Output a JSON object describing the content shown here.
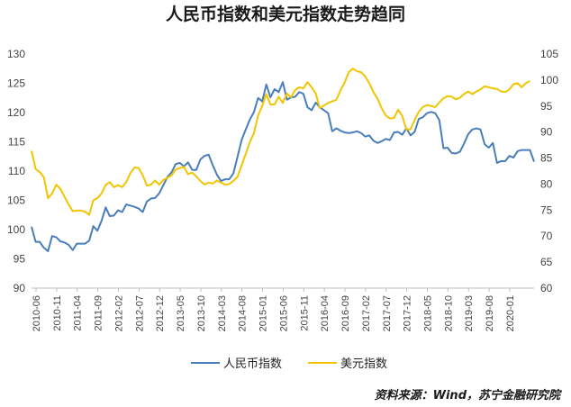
{
  "chart_data": {
    "type": "line",
    "title": "人民币指数和美元指数走势趋同",
    "source": "资料来源：Wind，苏宁金融研究院",
    "y_left": {
      "min": 90,
      "max": 130,
      "ticks": [
        90,
        95,
        100,
        105,
        110,
        115,
        120,
        125,
        130
      ]
    },
    "y_right": {
      "min": 60,
      "max": 105,
      "ticks": [
        60,
        65,
        70,
        75,
        80,
        85,
        90,
        95,
        100,
        105
      ]
    },
    "x_ticks": [
      "2010-06",
      "2010-11",
      "2011-04",
      "2011-09",
      "2012-02",
      "2012-07",
      "2012-12",
      "2013-05",
      "2013-10",
      "2014-03",
      "2014-08",
      "2015-01",
      "2015-06",
      "2015-11",
      "2016-04",
      "2016-09",
      "2017-02",
      "2017-07",
      "2017-12",
      "2018-05",
      "2018-10",
      "2019-03",
      "2019-08",
      "2020-01"
    ],
    "series": [
      {
        "name": "人民币指数",
        "axis": "left",
        "color": "#4a7ebb",
        "values": [
          100.5,
          97.9,
          97.9,
          96.9,
          96.3,
          98.9,
          98.7,
          98,
          97.8,
          97.4,
          96.5,
          97.6,
          97.6,
          97.6,
          98.1,
          100.6,
          99.8,
          101.5,
          103.8,
          102.3,
          102.4,
          103.3,
          103,
          104.3,
          104.1,
          103.9,
          103.6,
          103,
          104.8,
          105.3,
          105.4,
          106.2,
          107.6,
          109,
          109.8,
          111.2,
          111.4,
          110.8,
          111.5,
          110.2,
          110.2,
          112,
          112.6,
          112.8,
          111,
          109.4,
          108.3,
          108.6,
          108.6,
          109.6,
          112.4,
          115.3,
          117.1,
          118.8,
          120.1,
          122.5,
          121.9,
          124.8,
          122.6,
          124,
          123.5,
          125.2,
          122.2,
          122.6,
          122.7,
          123.5,
          123.2,
          120.9,
          120.4,
          121.7,
          120.9,
          120.4,
          119.9,
          116.8,
          117.3,
          116.9,
          116.6,
          116.5,
          116.6,
          116.8,
          116.5,
          115.9,
          116.1,
          115.2,
          114.8,
          115.1,
          115.5,
          115.3,
          116.6,
          116.7,
          116.2,
          117.3,
          116.1,
          116.7,
          118.9,
          119.2,
          119.9,
          120.1,
          119.9,
          118.7,
          113.9,
          114,
          113.1,
          113,
          113.3,
          114.7,
          116.3,
          117.1,
          117.3,
          117.1,
          114.6,
          114,
          114.8,
          111.4,
          111.7,
          111.7,
          112.6,
          112.3,
          113.4,
          113.6,
          113.6,
          113.6,
          111.6
        ]
      },
      {
        "name": "美元指数",
        "axis": "right",
        "color": "#f2c500",
        "values": [
          86.4,
          82.9,
          82.3,
          81.3,
          77.3,
          78.2,
          79.9,
          79.1,
          77.6,
          76.1,
          74.8,
          74.9,
          74.9,
          74.7,
          74.1,
          76.9,
          77.3,
          78.2,
          79.8,
          80.4,
          79.4,
          79.8,
          79.4,
          80.4,
          82.1,
          83.2,
          83.1,
          81.7,
          79.7,
          79.9,
          80.7,
          79.9,
          80.8,
          81.2,
          81.7,
          82.8,
          83.1,
          83.3,
          81.9,
          82.2,
          81.5,
          80.6,
          79.9,
          80.3,
          80.1,
          80.7,
          80.3,
          79.9,
          80,
          80.6,
          81.4,
          83.6,
          85.8,
          88.1,
          89.8,
          93.2,
          95,
          97.3,
          95.3,
          95.3,
          96.8,
          95.6,
          97.4,
          96.7,
          98.1,
          98.6,
          98.4,
          99.6,
          98.6,
          97.4,
          94.6,
          95.1,
          95.6,
          95.9,
          96.2,
          98,
          99.5,
          101.5,
          102.2,
          101.7,
          101.5,
          100.7,
          99.4,
          97.7,
          96.4,
          94.6,
          93.2,
          92.6,
          92.7,
          94.3,
          93.1,
          90.5,
          90.5,
          92.3,
          93.9,
          94.8,
          95.2,
          95,
          94.8,
          95.7,
          96.5,
          96.9,
          96.8,
          96.3,
          96.6,
          97.3,
          97.8,
          97.3,
          97.8,
          98.2,
          98.8,
          98.6,
          98.4,
          98.3,
          97.8,
          97.7,
          98.2,
          99.2,
          99.4,
          98.6,
          99.4,
          99.8
        ]
      }
    ],
    "legend": "bottom"
  }
}
